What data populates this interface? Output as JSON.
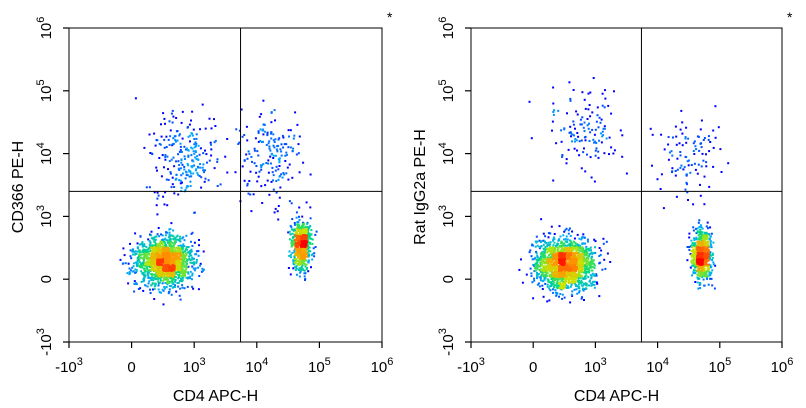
{
  "chart_data": [
    {
      "type": "scatter",
      "title": "",
      "xlabel": "CD4 APC-H",
      "ylabel": "CD366 PE-H",
      "marker": "*",
      "x_scale": "biexponential",
      "y_scale": "biexponential",
      "x_ticks": [
        {
          "value": -1000,
          "base": "-10",
          "exp": "3"
        },
        {
          "value": 0,
          "base": "0",
          "exp": ""
        },
        {
          "value": 1000,
          "base": "10",
          "exp": "3"
        },
        {
          "value": 10000,
          "base": "10",
          "exp": "4"
        },
        {
          "value": 100000,
          "base": "10",
          "exp": "5"
        },
        {
          "value": 1000000,
          "base": "10",
          "exp": "6"
        }
      ],
      "y_ticks": [
        {
          "value": -1000,
          "base": "-10",
          "exp": "3"
        },
        {
          "value": 0,
          "base": "0",
          "exp": ""
        },
        {
          "value": 1000,
          "base": "10",
          "exp": "3"
        },
        {
          "value": 10000,
          "base": "10",
          "exp": "4"
        },
        {
          "value": 100000,
          "base": "10",
          "exp": "5"
        },
        {
          "value": 1000000,
          "base": "10",
          "exp": "6"
        }
      ],
      "gates": {
        "x": 5500,
        "y": 2500
      },
      "populations": [
        {
          "x": 500,
          "y": 300,
          "weight": 0.58
        },
        {
          "x": 50000,
          "y": 550,
          "weight": 0.26
        },
        {
          "x": 800,
          "y": 8000,
          "weight": 0.09
        },
        {
          "x": 15000,
          "y": 9000,
          "weight": 0.07
        }
      ]
    },
    {
      "type": "scatter",
      "title": "",
      "xlabel": "CD4 APC-H",
      "ylabel": "Rat IgG2a PE-H",
      "marker": "*",
      "x_scale": "biexponential",
      "y_scale": "biexponential",
      "x_ticks": [
        {
          "value": -1000,
          "base": "-10",
          "exp": "3"
        },
        {
          "value": 0,
          "base": "0",
          "exp": ""
        },
        {
          "value": 1000,
          "base": "10",
          "exp": "3"
        },
        {
          "value": 10000,
          "base": "10",
          "exp": "4"
        },
        {
          "value": 100000,
          "base": "10",
          "exp": "5"
        },
        {
          "value": 1000000,
          "base": "10",
          "exp": "6"
        }
      ],
      "y_ticks": [
        {
          "value": -1000,
          "base": "-10",
          "exp": "3"
        },
        {
          "value": 0,
          "base": "0",
          "exp": ""
        },
        {
          "value": 1000,
          "base": "10",
          "exp": "3"
        },
        {
          "value": 10000,
          "base": "10",
          "exp": "4"
        },
        {
          "value": 100000,
          "base": "10",
          "exp": "5"
        },
        {
          "value": 1000000,
          "base": "10",
          "exp": "6"
        }
      ],
      "gates": {
        "x": 5500,
        "y": 2500
      },
      "populations": [
        {
          "x": 500,
          "y": 250,
          "weight": 0.64
        },
        {
          "x": 50000,
          "y": 400,
          "weight": 0.27
        },
        {
          "x": 800,
          "y": 25000,
          "weight": 0.05
        },
        {
          "x": 30000,
          "y": 9000,
          "weight": 0.04
        }
      ]
    }
  ]
}
